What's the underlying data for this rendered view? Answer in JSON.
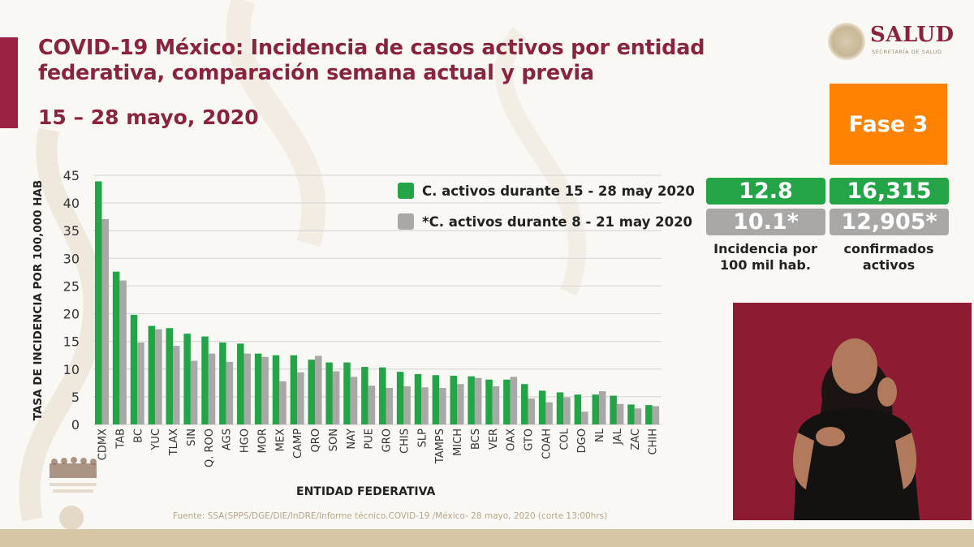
{
  "header": {
    "title_line1": "COVID-19 México: Incidencia de casos activos por entidad",
    "title_line2": "federativa, comparación semana actual y previa",
    "date_range": "15 – 28 mayo, 2020"
  },
  "logo": {
    "name": "SALUD",
    "subtitle": "SECRETARÍA DE SALUD"
  },
  "phase_badge": "Fase 3",
  "stats": {
    "incidence_current": "12.8",
    "incidence_previous": "10.1*",
    "incidence_label_line1": "Incidencia por",
    "incidence_label_line2": "100 mil hab.",
    "active_current": "16,315",
    "active_previous": "12,905*",
    "active_label_line1": "confirmados",
    "active_label_line2": "activos"
  },
  "colors": {
    "brand": "#8a2340",
    "current_series": "#22a447",
    "previous_series": "#a9a8a7",
    "phase": "#ff8200"
  },
  "source_note": "Fuente: SSA(SPPS/DGE/DIE/InDRE/Informe técnico.COVID-19 /México- 28 mayo, 2020 (corte 13:00hrs)",
  "chart_data": {
    "type": "bar",
    "title": "COVID-19 México: Incidencia de casos activos por entidad federativa, comparación semana actual y previa",
    "xlabel": "ENTIDAD FEDERATIVA",
    "ylabel": "TASA DE INCIDENCIA POR 100,000 HAB",
    "ylim": [
      0,
      45
    ],
    "yticks": [
      0,
      5,
      10,
      15,
      20,
      25,
      30,
      35,
      40,
      45
    ],
    "grid": true,
    "legend_position": "top-right",
    "categories": [
      "CDMX",
      "TAB",
      "BC",
      "YUC",
      "TLAX",
      "SIN",
      "Q. ROO",
      "AGS",
      "HGO",
      "MOR",
      "MEX",
      "CAMP",
      "QRO",
      "SON",
      "NAY",
      "PUE",
      "GRO",
      "CHIS",
      "SLP",
      "TAMPS",
      "MICH",
      "BCS",
      "VER",
      "OAX",
      "GTO",
      "COAH",
      "COL",
      "DGO",
      "NL",
      "JAL",
      "ZAC",
      "CHIH"
    ],
    "series": [
      {
        "name": "C. activos durante 15 - 28 may 2020",
        "color": "#22a447",
        "values": [
          43.9,
          27.6,
          19.8,
          17.8,
          17.4,
          16.4,
          15.9,
          14.8,
          14.6,
          12.8,
          12.5,
          12.5,
          11.7,
          11.2,
          11.2,
          10.4,
          10.3,
          9.5,
          9.1,
          8.9,
          8.8,
          8.7,
          8.1,
          8.1,
          7.3,
          6.1,
          5.8,
          5.4,
          5.4,
          5.2,
          3.6,
          3.5
        ]
      },
      {
        "name": "*C. activos durante 8 - 21 may 2020",
        "color": "#a9a8a7",
        "values": [
          37.1,
          26.0,
          14.8,
          17.2,
          14.2,
          11.5,
          12.8,
          11.3,
          12.8,
          12.2,
          7.8,
          9.4,
          12.4,
          9.6,
          8.6,
          7.0,
          6.6,
          6.9,
          6.7,
          6.6,
          7.3,
          8.4,
          6.9,
          8.6,
          4.7,
          4.0,
          4.9,
          2.3,
          6.0,
          3.7,
          2.9,
          3.3
        ]
      }
    ]
  }
}
